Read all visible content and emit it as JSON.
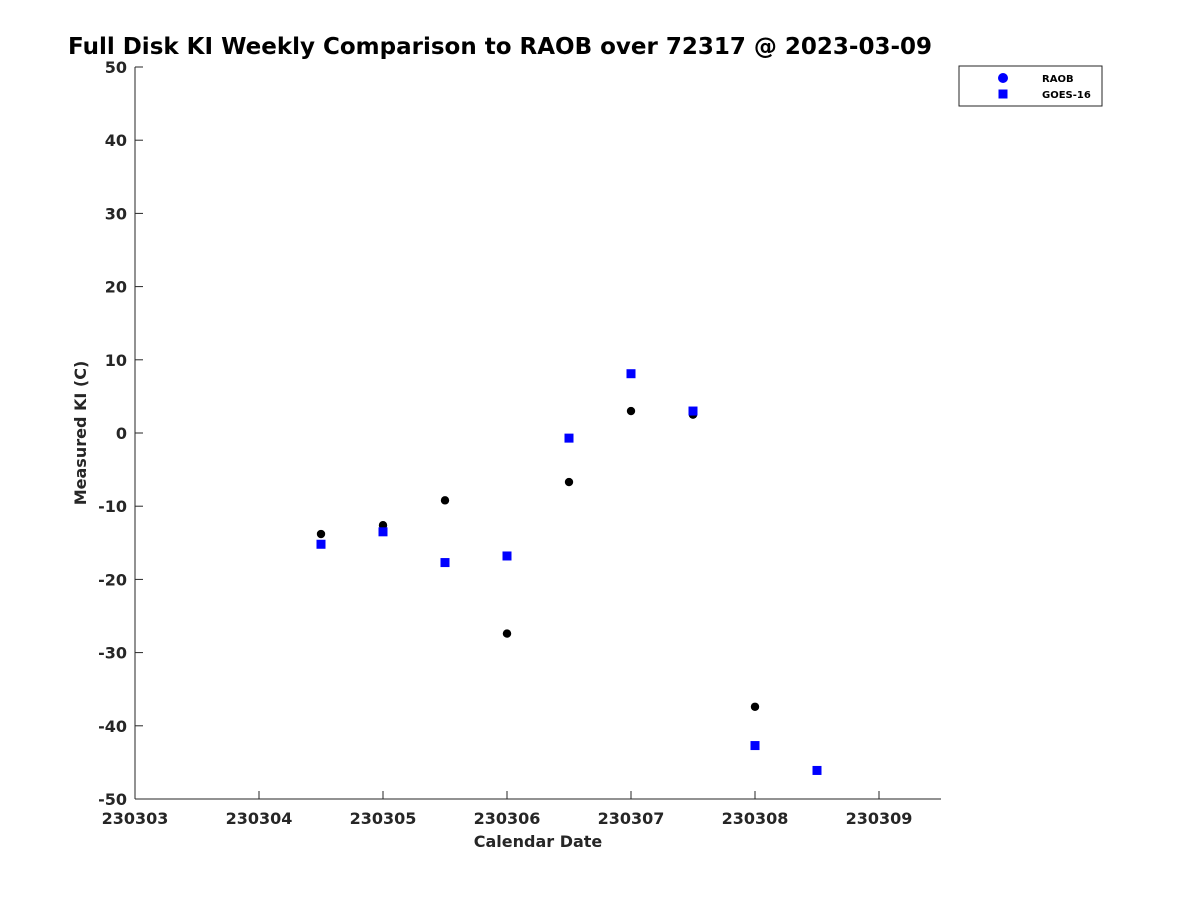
{
  "chart_data": {
    "type": "scatter",
    "title": "Full Disk KI Weekly Comparison to RAOB over 72317 @ 2023-03-09",
    "xlabel": "Calendar Date",
    "ylabel": "Measured KI (C)",
    "xlim": [
      230303,
      230309.5
    ],
    "ylim": [
      -50,
      50
    ],
    "x_ticks": [
      230303,
      230304,
      230305,
      230306,
      230307,
      230308,
      230309
    ],
    "x_tick_labels": [
      "230303",
      "230304",
      "230305",
      "230306",
      "230307",
      "230308",
      "230309"
    ],
    "y_ticks": [
      -50,
      -40,
      -30,
      -20,
      -10,
      0,
      10,
      20,
      30,
      40,
      50
    ],
    "y_tick_labels": [
      "-50",
      "-40",
      "-30",
      "-20",
      "-10",
      "0",
      "10",
      "20",
      "30",
      "40",
      "50"
    ],
    "grid": false,
    "legend_position": "top-right",
    "series": [
      {
        "name": "RAOB",
        "marker": "circle",
        "legend_color": "#0000ff",
        "point_color": "#000000",
        "x": [
          230304.5,
          230305,
          230305.5,
          230306,
          230306.5,
          230307,
          230307.5,
          230308
        ],
        "y": [
          -13.8,
          -12.6,
          -9.2,
          -27.4,
          -6.7,
          3.0,
          2.5,
          -37.4
        ]
      },
      {
        "name": "GOES-16",
        "marker": "square",
        "legend_color": "#0000ff",
        "point_color": "#0000ff",
        "x": [
          230304.5,
          230305,
          230305.5,
          230306,
          230306.5,
          230307,
          230307.5,
          230308,
          230308.5
        ],
        "y": [
          -15.2,
          -13.5,
          -17.7,
          -16.8,
          -0.7,
          8.1,
          3.0,
          -42.7,
          -46.1
        ]
      }
    ]
  }
}
